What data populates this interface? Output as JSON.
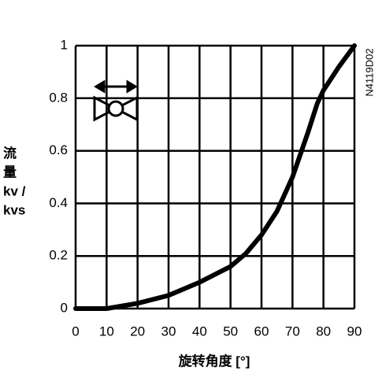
{
  "chart_data": {
    "type": "line",
    "xlabel": "旋转角度 [°]",
    "ylabel": [
      "流",
      "量",
      "kv /",
      "kvs"
    ],
    "annotation": "N4119D02",
    "x": [
      0,
      10,
      20,
      30,
      40,
      50,
      55,
      60,
      65,
      70,
      75,
      78,
      80,
      85,
      90
    ],
    "series": [
      {
        "color": "#000000",
        "values": [
          0,
          0,
          0.02,
          0.05,
          0.1,
          0.16,
          0.21,
          0.28,
          0.37,
          0.5,
          0.67,
          0.78,
          0.83,
          0.92,
          1
        ]
      }
    ],
    "xlim": [
      0,
      90
    ],
    "ylim": [
      0,
      1
    ],
    "xticks": [
      0,
      10,
      20,
      30,
      40,
      50,
      60,
      70,
      80,
      90
    ],
    "yticks": [
      0,
      0.2,
      0.4,
      0.6,
      0.8,
      1
    ],
    "grid": true
  }
}
